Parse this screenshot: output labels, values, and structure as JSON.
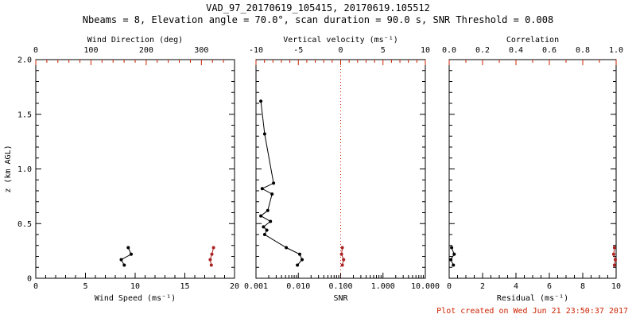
{
  "header": {
    "title": "VAD_97_20170619_105415, 20170619.105512",
    "subtitle": "Nbeams = 8, Elevation angle = 70.0°, scan duration = 90.0 s, SNR Threshold = 0.008"
  },
  "footer": {
    "created": "Plot created on Wed Jun 21 23:50:37 2017"
  },
  "colors": {
    "accent_red": "#cc2200",
    "data_red": "#aa2222",
    "data_black": "#000000",
    "frame": "#000000",
    "background": "#ffffff"
  },
  "chart_data": [
    {
      "name": "wind",
      "type": "scatter",
      "y_axis": {
        "label": "z (km AGL)",
        "range": [
          0,
          2
        ],
        "ticks": [
          0,
          0.5,
          1,
          1.5,
          2
        ],
        "tick_labels": [
          "0",
          "0.5",
          "1.0",
          "1.5",
          "2.0"
        ],
        "minor": 5,
        "show_labels": true
      },
      "bottom_axis": {
        "label": "Wind Speed (ms⁻¹)",
        "scale": "linear",
        "range": [
          0,
          20
        ],
        "ticks": [
          0,
          5,
          10,
          15,
          20
        ],
        "tick_labels": [
          "0",
          "5",
          "10",
          "15",
          "20"
        ],
        "minor": 5
      },
      "top_axis": {
        "label": "Wind Direction (deg)",
        "scale": "linear",
        "range": [
          0,
          360
        ],
        "ticks": [
          0,
          100,
          200,
          300
        ],
        "tick_labels": [
          "0",
          "100",
          "200",
          "300"
        ],
        "minor": 5
      },
      "series": [
        {
          "name": "wind-speed",
          "axis": "bottom",
          "color": "black",
          "points": [
            [
              9.3,
              0.28
            ],
            [
              9.6,
              0.22
            ],
            [
              8.6,
              0.17
            ],
            [
              8.9,
              0.12
            ]
          ]
        },
        {
          "name": "wind-direction",
          "axis": "top",
          "color": "red",
          "points": [
            [
              322,
              0.28
            ],
            [
              319,
              0.22
            ],
            [
              316,
              0.17
            ],
            [
              318,
              0.12
            ]
          ]
        }
      ]
    },
    {
      "name": "snr",
      "type": "scatter",
      "y_axis": {
        "label": "",
        "range": [
          0,
          2
        ],
        "ticks": [
          0,
          0.5,
          1,
          1.5,
          2
        ],
        "tick_labels": [
          "0",
          "0.5",
          "1.0",
          "1.5",
          "2.0"
        ],
        "minor": 5,
        "show_labels": false
      },
      "bottom_axis": {
        "label": "SNR",
        "scale": "log",
        "range": [
          0.001,
          10
        ],
        "ticks": [
          0.001,
          0.01,
          0.1,
          1,
          10
        ],
        "tick_labels": [
          "0.001",
          "0.010",
          "0.100",
          "1.000",
          "10.000"
        ]
      },
      "top_axis": {
        "label": "Vertical velocity (ms⁻¹)",
        "scale": "linear",
        "range": [
          -10,
          10
        ],
        "ticks": [
          -10,
          -5,
          0,
          5,
          10
        ],
        "tick_labels": [
          "-10",
          "-5",
          "0",
          "5",
          "10"
        ],
        "minor": 5
      },
      "ref_lines": [
        {
          "axis": "top",
          "value": 0,
          "color": "red",
          "style": "dotted"
        }
      ],
      "series": [
        {
          "name": "snr-profile",
          "axis": "bottom",
          "color": "black",
          "points": [
            [
              0.0013,
              1.62
            ],
            [
              0.0016,
              1.32
            ],
            [
              0.0026,
              0.87
            ],
            [
              0.0014,
              0.82
            ],
            [
              0.0024,
              0.77
            ],
            [
              0.0019,
              0.62
            ],
            [
              0.0013,
              0.57
            ],
            [
              0.0022,
              0.52
            ],
            [
              0.0015,
              0.47
            ],
            [
              0.0018,
              0.44
            ],
            [
              0.0016,
              0.4
            ],
            [
              0.0052,
              0.28
            ],
            [
              0.0108,
              0.22
            ],
            [
              0.0123,
              0.17
            ],
            [
              0.0095,
              0.12
            ]
          ]
        },
        {
          "name": "vertical-velocity",
          "axis": "top",
          "color": "red",
          "points": [
            [
              0.2,
              0.28
            ],
            [
              0.1,
              0.22
            ],
            [
              0.35,
              0.17
            ],
            [
              0.2,
              0.12
            ]
          ]
        }
      ]
    },
    {
      "name": "residual",
      "type": "scatter",
      "y_axis": {
        "label": "",
        "range": [
          0,
          2
        ],
        "ticks": [
          0,
          0.5,
          1,
          1.5,
          2
        ],
        "tick_labels": [
          "0",
          "0.5",
          "1.0",
          "1.5",
          "2.0"
        ],
        "minor": 5,
        "show_labels": false
      },
      "bottom_axis": {
        "label": "Residual (ms⁻¹)",
        "scale": "linear",
        "range": [
          0,
          10
        ],
        "ticks": [
          0,
          2,
          4,
          6,
          8,
          10
        ],
        "tick_labels": [
          "0",
          "2",
          "4",
          "6",
          "8",
          "10"
        ],
        "minor": 4
      },
      "top_axis": {
        "label": "Correlation",
        "scale": "linear",
        "range": [
          0,
          1
        ],
        "ticks": [
          0,
          0.2,
          0.4,
          0.6,
          0.8,
          1
        ],
        "tick_labels": [
          "0.0",
          "0.2",
          "0.4",
          "0.6",
          "0.8",
          "1.0"
        ],
        "minor": 2
      },
      "series": [
        {
          "name": "residual",
          "axis": "bottom",
          "color": "black",
          "points": [
            [
              0.15,
              0.28
            ],
            [
              0.3,
              0.22
            ],
            [
              0.1,
              0.17
            ],
            [
              0.25,
              0.12
            ]
          ]
        },
        {
          "name": "correlation",
          "axis": "top",
          "color": "red",
          "points": [
            [
              0.99,
              0.28
            ],
            [
              0.985,
              0.22
            ],
            [
              0.995,
              0.17
            ],
            [
              0.99,
              0.12
            ]
          ]
        }
      ]
    }
  ]
}
